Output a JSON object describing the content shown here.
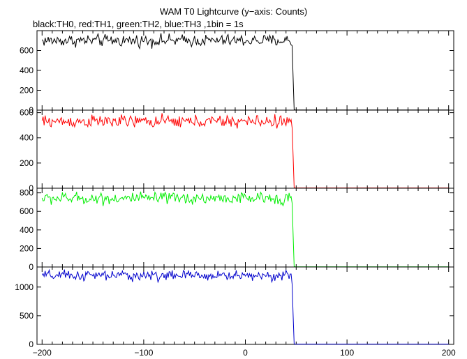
{
  "header": {
    "title": "WAM T0 Lightcurve (y−axis: Counts)",
    "subtitle": "black:TH0, red:TH1, green:TH2, blue:TH3 ,1bin = 1s"
  },
  "chart_data": {
    "type": "line",
    "title": "WAM T0 Lightcurve (y−axis: Counts)",
    "subtitle": "black:TH0, red:TH1, green:TH2, blue:TH3 ,1bin = 1s",
    "xlim": [
      -205,
      205
    ],
    "x_ticks": [
      -200,
      -100,
      0,
      100,
      200
    ],
    "x_tick_labels": [
      "−200",
      "−100",
      "0",
      "100",
      "200"
    ],
    "grid": false,
    "panels": [
      {
        "color": "#000000",
        "ylim": [
          0,
          800
        ],
        "y_ticks": [
          0,
          200,
          400,
          600
        ],
        "series": {
          "x_start": -200,
          "x_end": 200,
          "bin_seconds": 1,
          "pre_level": 700,
          "noise": 30,
          "drop_x": [
            46,
            47,
            48
          ],
          "drop_values": [
            650,
            320,
            5
          ],
          "post_level": 2
        }
      },
      {
        "color": "#ff0000",
        "ylim": [
          0,
          620
        ],
        "y_ticks": [
          0,
          200,
          400,
          600
        ],
        "series": {
          "x_start": -200,
          "x_end": 200,
          "bin_seconds": 1,
          "pre_level": 530,
          "noise": 25,
          "drop_x": [
            46,
            47,
            48
          ],
          "drop_values": [
            480,
            250,
            4
          ],
          "post_level": 2
        }
      },
      {
        "color": "#00ee00",
        "ylim": [
          0,
          850
        ],
        "y_ticks": [
          0,
          200,
          400,
          600,
          800
        ],
        "series": {
          "x_start": -200,
          "x_end": 200,
          "bin_seconds": 1,
          "pre_level": 740,
          "noise": 32,
          "drop_x": [
            46,
            47,
            48
          ],
          "drop_values": [
            690,
            340,
            5
          ],
          "post_level": 2
        }
      },
      {
        "color": "#0000cc",
        "ylim": [
          0,
          1350
        ],
        "y_ticks": [
          0,
          500,
          1000
        ],
        "series": {
          "x_start": -200,
          "x_end": 200,
          "bin_seconds": 1,
          "pre_level": 1200,
          "noise": 45,
          "drop_x": [
            46,
            47,
            48
          ],
          "drop_values": [
            1050,
            500,
            8
          ],
          "post_level": 3
        }
      }
    ]
  }
}
